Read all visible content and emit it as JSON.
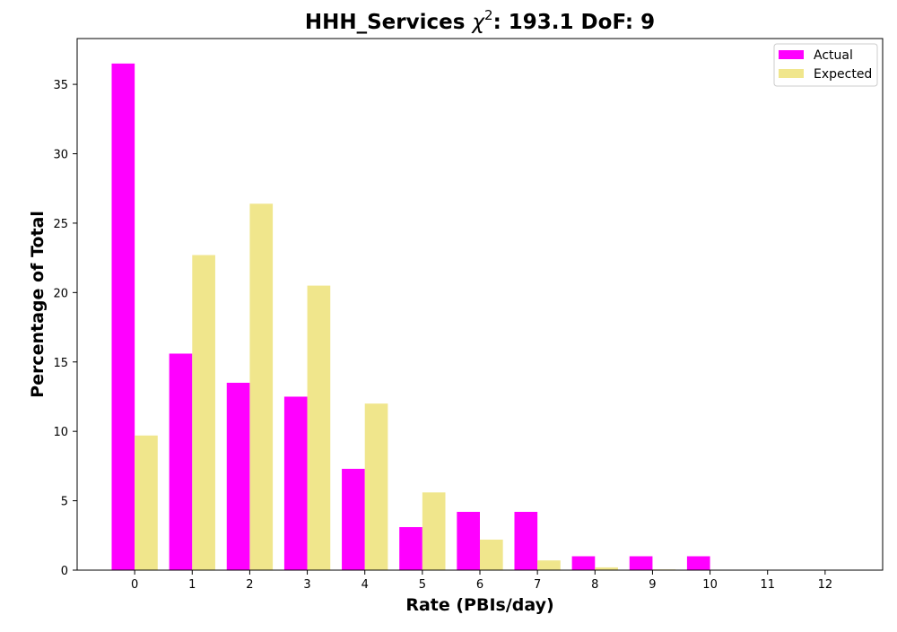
{
  "colors": {
    "actual": "#ff00ff",
    "expected": "#f0e68c",
    "axis": "#000000",
    "legend_border": "#cccccc",
    "background": "#ffffff"
  },
  "chart_data": {
    "type": "bar",
    "title": {
      "prefix": "HHH_Services ",
      "chi": "χ",
      "sup": "2",
      "suffix": ": 193.1 DoF: 9"
    },
    "xlabel": "Rate (PBIs/day)",
    "ylabel": "Percentage of Total",
    "categories": [
      "0",
      "1",
      "2",
      "3",
      "4",
      "5",
      "6",
      "7",
      "8",
      "9",
      "10",
      "11",
      "12"
    ],
    "yticks": [
      "0",
      "5",
      "10",
      "15",
      "20",
      "25",
      "30",
      "35"
    ],
    "ylim": [
      0,
      38.3
    ],
    "xlim": [
      -1,
      13
    ],
    "grid": false,
    "legend_position": "top-right",
    "series": [
      {
        "name": "Actual",
        "values": [
          36.5,
          15.6,
          13.5,
          12.5,
          7.3,
          3.1,
          4.2,
          4.2,
          1.0,
          1.0,
          1.0,
          0,
          0
        ]
      },
      {
        "name": "Expected",
        "values": [
          9.7,
          22.7,
          26.4,
          20.5,
          12.0,
          5.6,
          2.2,
          0.7,
          0.2,
          0.05,
          0.01,
          0,
          0
        ]
      }
    ]
  }
}
